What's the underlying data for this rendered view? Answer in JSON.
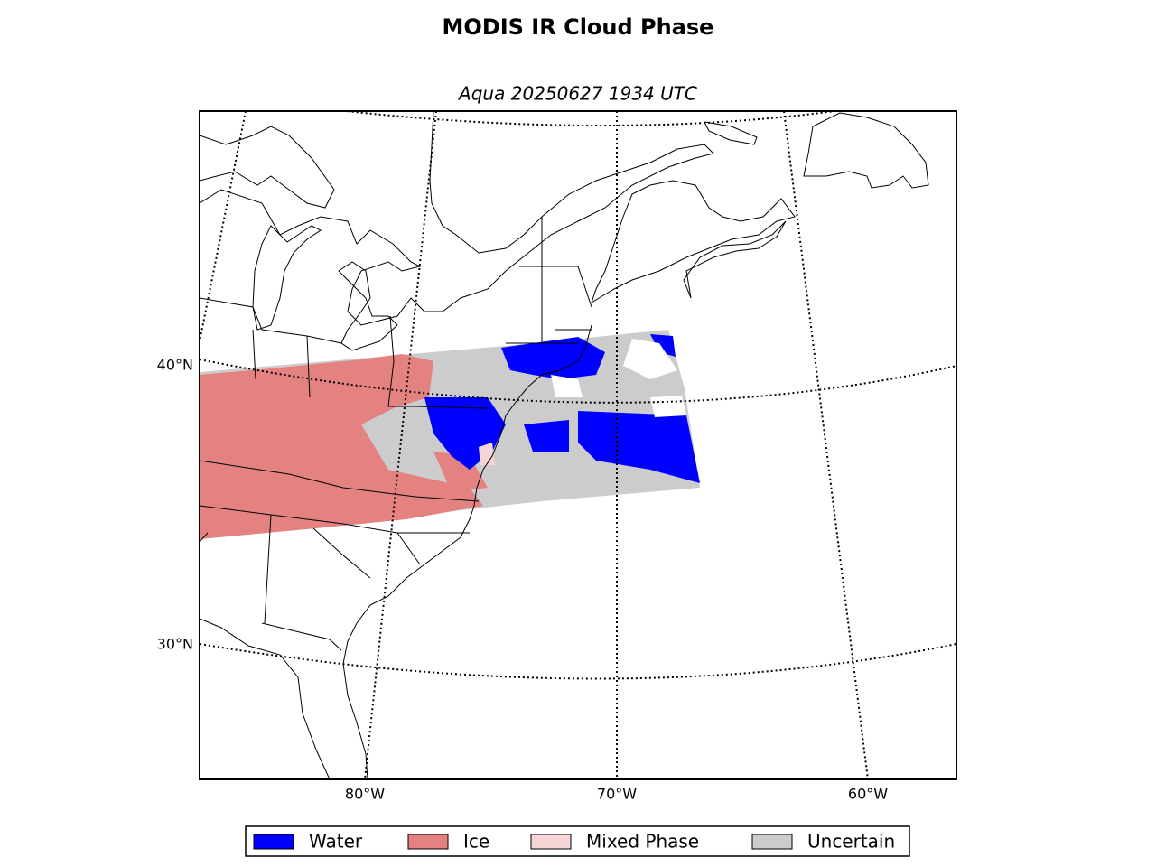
{
  "title": "MODIS IR Cloud Phase",
  "subtitle": "Aqua 20250627 1934 UTC",
  "latitude_labels": [
    "40°N",
    "30°N"
  ],
  "longitude_labels": [
    "80°W",
    "70°W",
    "60°W"
  ],
  "legend": [
    {
      "label": "Water",
      "color": "#0000ff"
    },
    {
      "label": "Ice",
      "color": "#e48282"
    },
    {
      "label": "Mixed Phase",
      "color": "#f5d5d5"
    },
    {
      "label": "Uncertain",
      "color": "#cccccc"
    }
  ]
}
